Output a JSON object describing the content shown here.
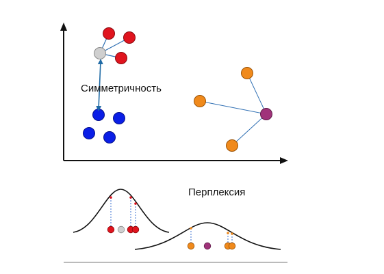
{
  "labels": {
    "symmetry": "Симметричность",
    "perplexity": "Перплексия"
  },
  "colors": {
    "red": "#e0141e",
    "blue": "#0a1ee6",
    "orange": "#f08a1c",
    "purple": "#a0337a",
    "gray": "#cfcfcf",
    "link": "#2f6fb3",
    "symmetry_arrow": "#1f6aa5",
    "guide": "#3a6fd0",
    "axis": "#111111",
    "curve": "#111111",
    "baseline": "#777777"
  },
  "icons": {
    "axis_arrowheads": "arrow-up-icon / arrow-right-icon",
    "symmetry_arrow": "double-headed-arrow-icon"
  }
}
